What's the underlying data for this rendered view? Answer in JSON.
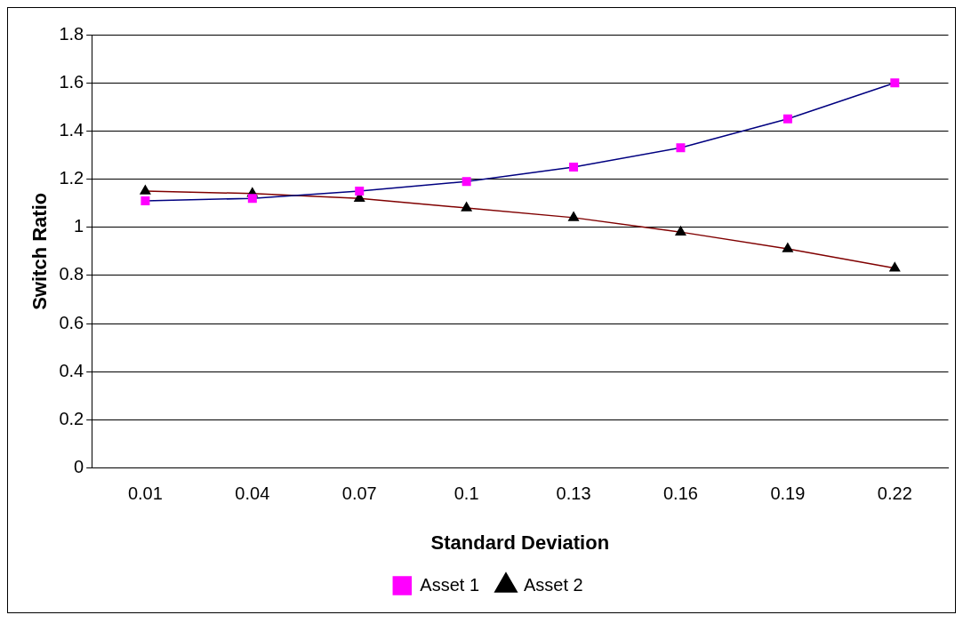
{
  "chart_data": {
    "type": "line",
    "xlabel": "Standard Deviation",
    "ylabel": "Switch Ratio",
    "categories": [
      "0.01",
      "0.04",
      "0.07",
      "0.1",
      "0.13",
      "0.16",
      "0.19",
      "0.22"
    ],
    "series": [
      {
        "name": "Asset 1",
        "color": "#000080",
        "colors": [
          "#ff00ff",
          "#ff00ff",
          "#ff00ff",
          "#ff00ff",
          "#ff00ff",
          "#ff00ff",
          "#ff00ff",
          "#ff00ff"
        ],
        "marker": "square",
        "values": [
          1.11,
          1.12,
          1.15,
          1.19,
          1.25,
          1.33,
          1.45,
          1.6
        ]
      },
      {
        "name": "Asset 2",
        "color": "#800000",
        "colors": [
          "#000000",
          "#000000",
          "#000000",
          "#000000",
          "#000000",
          "#000000",
          "#000000",
          "#000000"
        ],
        "marker": "triangle",
        "values": [
          1.15,
          1.14,
          1.12,
          1.08,
          1.04,
          0.98,
          0.91,
          0.83
        ]
      }
    ],
    "ylim": [
      0,
      1.8
    ],
    "yticks": [
      0,
      0.2,
      0.4,
      0.6,
      0.8,
      1,
      1.2,
      1.4,
      1.6,
      1.8
    ],
    "grid": "y",
    "legend": "bottom"
  }
}
